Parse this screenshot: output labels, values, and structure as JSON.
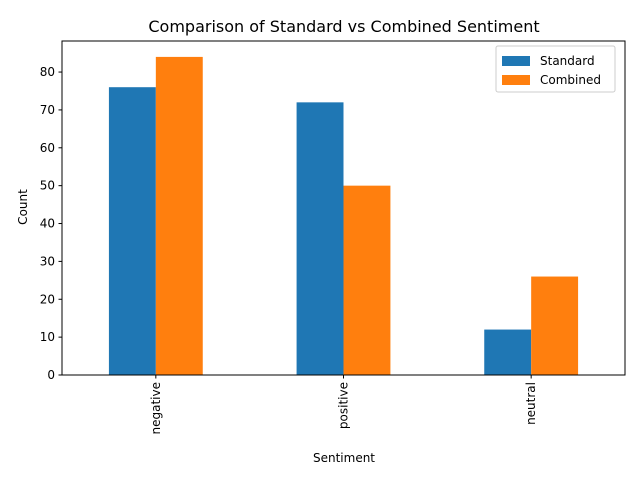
{
  "chart_data": {
    "type": "bar",
    "title": "Comparison of Standard vs Combined Sentiment",
    "xlabel": "Sentiment",
    "ylabel": "Count",
    "categories": [
      "negative",
      "positive",
      "neutral"
    ],
    "series": [
      {
        "name": "Standard",
        "values": [
          76,
          72,
          12
        ],
        "color": "#1f77b4"
      },
      {
        "name": "Combined",
        "values": [
          84,
          50,
          26
        ],
        "color": "#ff7f0e"
      }
    ],
    "ylim": [
      0,
      88.2
    ],
    "yticks": [
      0,
      10,
      20,
      30,
      40,
      50,
      60,
      70,
      80
    ],
    "x_tick_rotation": "vertical",
    "grid": false,
    "legend": "top-right"
  }
}
